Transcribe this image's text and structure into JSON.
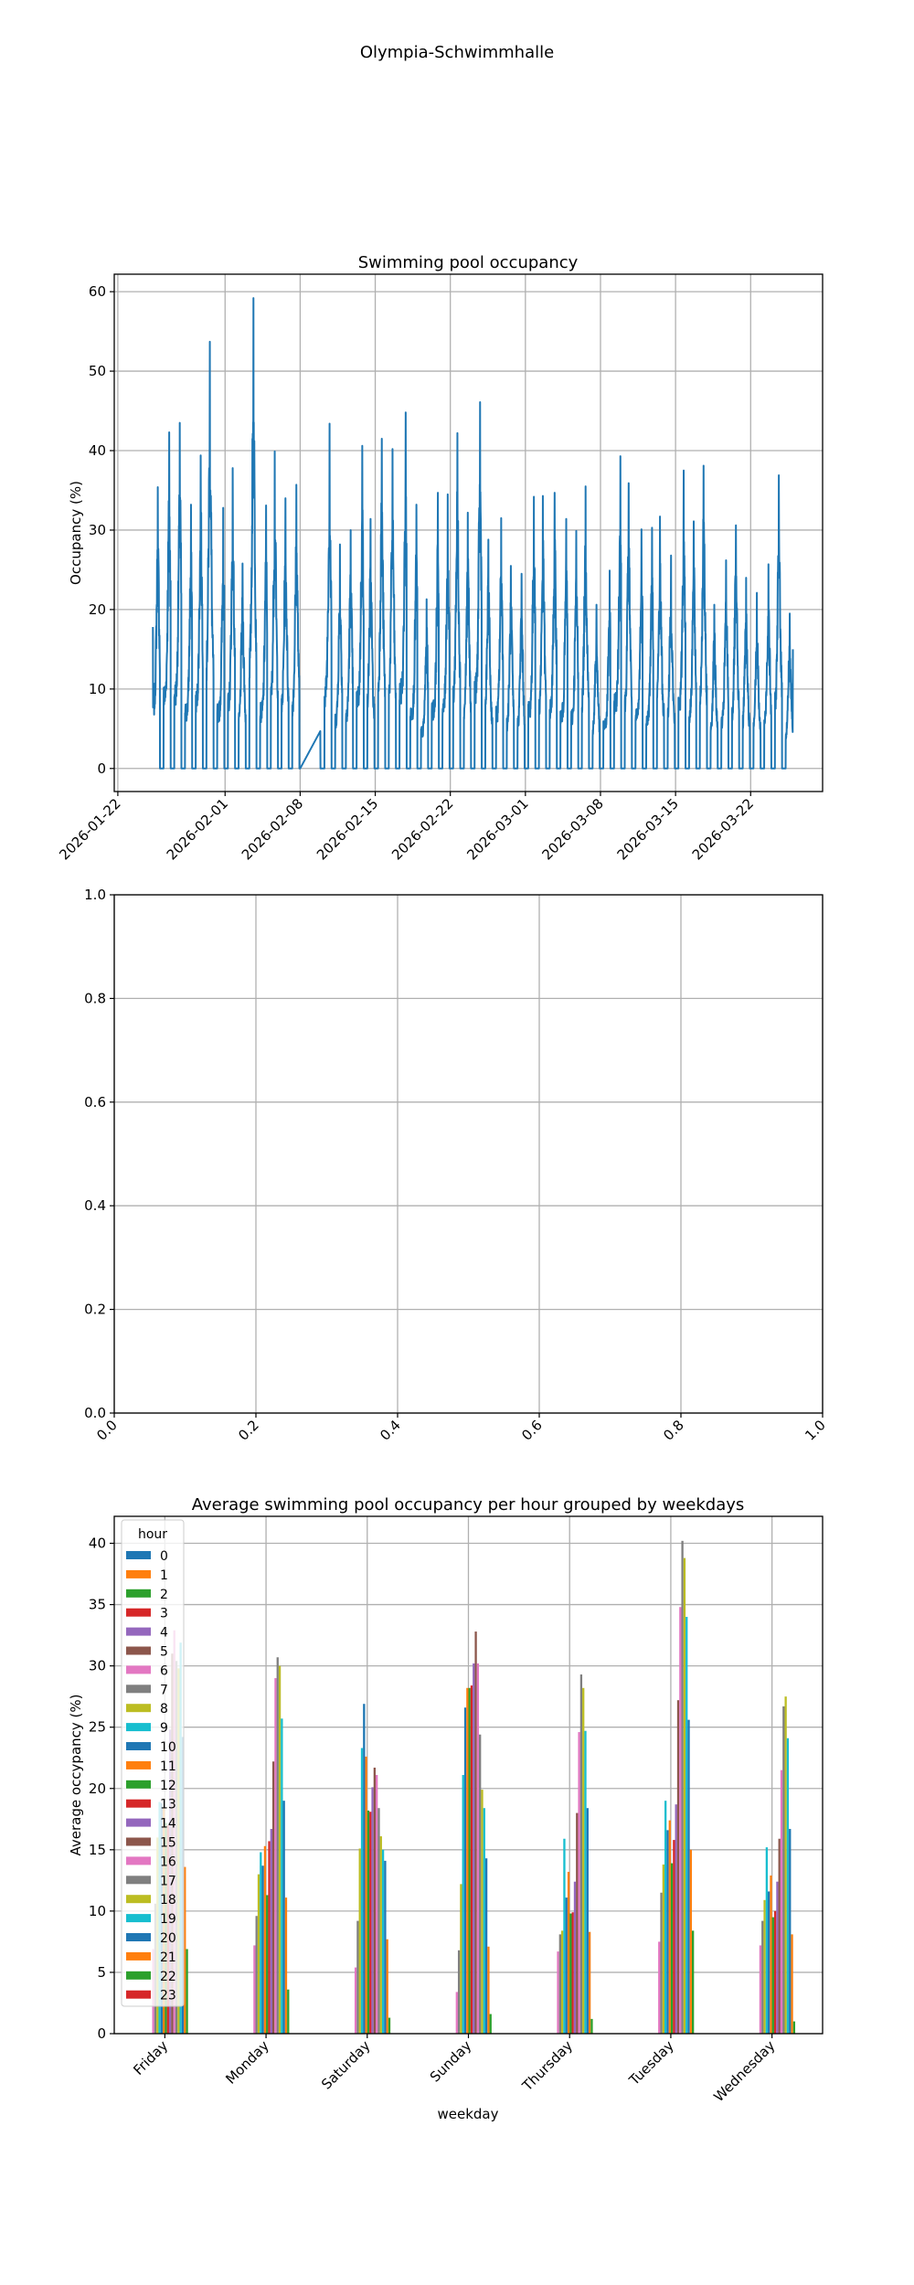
{
  "figure_title": "Olympia-Schwimmhalle",
  "chart_data": [
    {
      "type": "line",
      "title": "Swimming pool occupancy",
      "xlabel": "",
      "ylabel": "Occupancy (%)",
      "color": "#1f77b4",
      "grid": true,
      "xlim": [
        "2026-01-21T16:00",
        "2026-03-28T17:00"
      ],
      "ylim": [
        -2.9,
        62.2
      ],
      "x_ticks": [
        "2026-01-22",
        "2026-02-01",
        "2026-02-08",
        "2026-02-15",
        "2026-02-22",
        "2026-03-01",
        "2026-03-08",
        "2026-03-15",
        "2026-03-22"
      ],
      "y_ticks": [
        "0",
        "10",
        "20",
        "30",
        "40",
        "50",
        "60"
      ],
      "series_start_value": 17.8,
      "gap": {
        "from": "2026-02-08",
        "to": "2026-02-09T21:00",
        "end_value": 4.7
      },
      "last_value": 15,
      "daily_peaks": [
        {
          "date": "2026-01-25",
          "peak": 35.4
        },
        {
          "date": "2026-01-26",
          "peak": 42.3
        },
        {
          "date": "2026-01-27",
          "peak": 43.5
        },
        {
          "date": "2026-01-28",
          "peak": 33.2
        },
        {
          "date": "2026-01-29",
          "peak": 39.4
        },
        {
          "date": "2026-01-30",
          "peak": 53.7
        },
        {
          "date": "2026-01-31",
          "peak": 32.8
        },
        {
          "date": "2026-02-01",
          "peak": 37.8
        },
        {
          "date": "2026-02-02",
          "peak": 25.8
        },
        {
          "date": "2026-02-03",
          "peak": 59.2
        },
        {
          "date": "2026-02-04",
          "peak": 33.1
        },
        {
          "date": "2026-02-05",
          "peak": 39.9
        },
        {
          "date": "2026-02-06",
          "peak": 34.0
        },
        {
          "date": "2026-02-07",
          "peak": 35.7
        },
        {
          "date": "2026-02-10",
          "peak": 43.4
        },
        {
          "date": "2026-02-11",
          "peak": 28.2
        },
        {
          "date": "2026-02-12",
          "peak": 30.0
        },
        {
          "date": "2026-02-13",
          "peak": 40.6
        },
        {
          "date": "2026-02-14",
          "peak": 31.4
        },
        {
          "date": "2026-02-15",
          "peak": 41.5
        },
        {
          "date": "2026-02-16",
          "peak": 40.2
        },
        {
          "date": "2026-02-17",
          "peak": 44.8
        },
        {
          "date": "2026-02-18",
          "peak": 33.2
        },
        {
          "date": "2026-02-19",
          "peak": 21.3
        },
        {
          "date": "2026-02-20",
          "peak": 34.7
        },
        {
          "date": "2026-02-21",
          "peak": 34.5
        },
        {
          "date": "2026-02-22",
          "peak": 42.2
        },
        {
          "date": "2026-02-23",
          "peak": 32.2
        },
        {
          "date": "2026-02-24",
          "peak": 46.1
        },
        {
          "date": "2026-02-25",
          "peak": 28.8
        },
        {
          "date": "2026-02-26",
          "peak": 31.5
        },
        {
          "date": "2026-02-27",
          "peak": 25.5
        },
        {
          "date": "2026-02-28",
          "peak": 24.5
        },
        {
          "date": "2026-03-01",
          "peak": 34.2
        },
        {
          "date": "2026-03-02",
          "peak": 34.3
        },
        {
          "date": "2026-03-03",
          "peak": 34.7
        },
        {
          "date": "2026-03-04",
          "peak": 31.4
        },
        {
          "date": "2026-03-05",
          "peak": 29.9
        },
        {
          "date": "2026-03-06",
          "peak": 35.5
        },
        {
          "date": "2026-03-07",
          "peak": 20.6
        },
        {
          "date": "2026-03-08",
          "peak": 24.9
        },
        {
          "date": "2026-03-09",
          "peak": 39.3
        },
        {
          "date": "2026-03-10",
          "peak": 35.9
        },
        {
          "date": "2026-03-11",
          "peak": 30.1
        },
        {
          "date": "2026-03-12",
          "peak": 30.3
        },
        {
          "date": "2026-03-13",
          "peak": 31.7
        },
        {
          "date": "2026-03-14",
          "peak": 26.8
        },
        {
          "date": "2026-03-15",
          "peak": 37.5
        },
        {
          "date": "2026-03-16",
          "peak": 31.1
        },
        {
          "date": "2026-03-17",
          "peak": 38.1
        },
        {
          "date": "2026-03-18",
          "peak": 20.6
        },
        {
          "date": "2026-03-19",
          "peak": 26.2
        },
        {
          "date": "2026-03-20",
          "peak": 30.6
        },
        {
          "date": "2026-03-21",
          "peak": 24.0
        },
        {
          "date": "2026-03-22",
          "peak": 22.1
        },
        {
          "date": "2026-03-23",
          "peak": 25.7
        },
        {
          "date": "2026-03-24",
          "peak": 36.9
        },
        {
          "date": "2026-03-25",
          "peak": 19.5
        }
      ]
    },
    {
      "type": "empty",
      "title": "",
      "xlim": [
        0,
        1
      ],
      "ylim": [
        0,
        1
      ],
      "grid": true,
      "x_ticks": [
        "0.0",
        "0.2",
        "0.4",
        "0.6",
        "0.8",
        "1.0"
      ],
      "y_ticks": [
        "0.0",
        "0.2",
        "0.4",
        "0.6",
        "0.8",
        "1.0"
      ]
    },
    {
      "type": "bar",
      "title": "Average swimming pool occupancy per hour grouped by weekdays",
      "xlabel": "weekday",
      "ylabel": "Average occypancy (%)",
      "grid": true,
      "ylim": [
        0,
        42.2
      ],
      "y_ticks": [
        "0",
        "5",
        "10",
        "15",
        "20",
        "25",
        "30",
        "35",
        "40"
      ],
      "legend": {
        "title": "hour",
        "placement": "top-left"
      },
      "categories": [
        "Friday",
        "Monday",
        "Saturday",
        "Sunday",
        "Thursday",
        "Tuesday",
        "Wednesday"
      ],
      "hours": [
        "0",
        "1",
        "2",
        "3",
        "4",
        "5",
        "6",
        "7",
        "8",
        "9",
        "10",
        "11",
        "12",
        "13",
        "14",
        "15",
        "16",
        "17",
        "18",
        "19",
        "20",
        "21",
        "22",
        "23"
      ],
      "colors": [
        "#1f77b4",
        "#ff7f0e",
        "#2ca02c",
        "#d62728",
        "#9467bd",
        "#8c564b",
        "#e377c2",
        "#7f7f7f",
        "#bcbd22",
        "#17becf"
      ],
      "values": [
        [
          0,
          0,
          0,
          0,
          0,
          0,
          6.9,
          10.6,
          16.0,
          18.9,
          18.8,
          18.4,
          17.2,
          17.0,
          24.8,
          31.0,
          32.9,
          30.4,
          29.8,
          31.9,
          24.2,
          13.6,
          6.9,
          0
        ],
        [
          0,
          0,
          0,
          0,
          0,
          0,
          7.2,
          9.6,
          13.0,
          14.8,
          13.7,
          15.3,
          11.3,
          15.7,
          16.7,
          22.2,
          29.0,
          30.7,
          30.0,
          25.7,
          19.0,
          11.1,
          3.6,
          0
        ],
        [
          0,
          0,
          0,
          0,
          0,
          0,
          5.4,
          9.2,
          15.1,
          23.3,
          26.9,
          22.6,
          18.2,
          18.1,
          20.1,
          21.7,
          21.1,
          18.4,
          16.1,
          15.0,
          14.1,
          7.7,
          1.3,
          0
        ],
        [
          0,
          0,
          0,
          0,
          0,
          0,
          3.4,
          6.8,
          12.2,
          21.1,
          26.6,
          28.2,
          28.2,
          28.4,
          30.2,
          32.8,
          30.2,
          24.4,
          19.9,
          18.4,
          14.3,
          7.1,
          1.6,
          0
        ],
        [
          0,
          0,
          0,
          0,
          0,
          0,
          6.7,
          8.1,
          8.4,
          15.9,
          11.1,
          13.2,
          9.8,
          9.9,
          12.4,
          18.0,
          24.6,
          29.3,
          28.2,
          24.7,
          18.4,
          8.3,
          1.2,
          0
        ],
        [
          0,
          0,
          0,
          0,
          0,
          0,
          7.5,
          11.5,
          13.8,
          19.0,
          16.6,
          17.4,
          13.9,
          15.8,
          18.7,
          27.2,
          34.8,
          40.2,
          38.8,
          34.0,
          25.6,
          15.0,
          8.4,
          0
        ],
        [
          0,
          0,
          0,
          0,
          0,
          0,
          7.2,
          9.2,
          10.9,
          15.2,
          11.6,
          12.9,
          9.5,
          10.0,
          12.4,
          15.9,
          21.5,
          26.7,
          27.5,
          24.1,
          16.7,
          8.1,
          1.0,
          0
        ]
      ]
    }
  ]
}
